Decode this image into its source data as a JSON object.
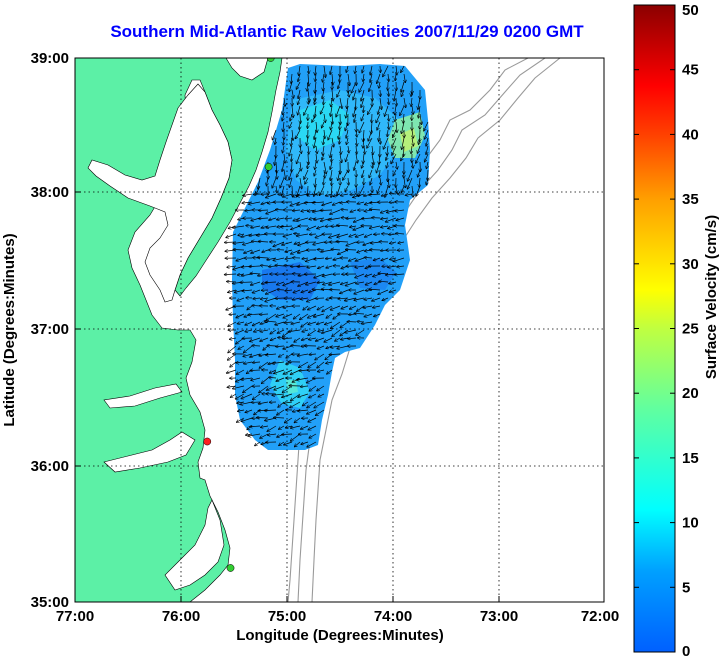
{
  "title": "Southern Mid-Atlantic Raw Velocities 2007/11/29 0200 GMT",
  "map": {
    "xlabel": "Longitude (Degrees:Minutes)",
    "ylabel": "Latitude (Degrees:Minutes)",
    "lon_ticks": [
      "77:00",
      "76:00",
      "75:00",
      "74:00",
      "73:00",
      "72:00"
    ],
    "lat_ticks": [
      "39:00",
      "38:00",
      "37:00",
      "36:00",
      "35:00"
    ],
    "lon_range": [
      -77,
      -72
    ],
    "lat_range": [
      35,
      39
    ],
    "grid": true,
    "land_color": "#5cf0a6",
    "background_color": "#ffffff",
    "sites": [
      {
        "lon": -75.15,
        "lat": 39.0,
        "color": "#32cd32"
      },
      {
        "lon": -75.17,
        "lat": 38.2,
        "color": "#32cd32"
      },
      {
        "lon": -75.75,
        "lat": 36.18,
        "color": "#ff2020"
      },
      {
        "lon": -75.53,
        "lat": 35.25,
        "color": "#32cd32"
      }
    ]
  },
  "colorbar": {
    "label": "Surface Velocity (cm/s)",
    "ticks": [
      "0",
      "5",
      "10",
      "15",
      "20",
      "25",
      "30",
      "35",
      "40",
      "45",
      "50"
    ],
    "min": 0,
    "max": 50,
    "colormap": "jet"
  }
}
